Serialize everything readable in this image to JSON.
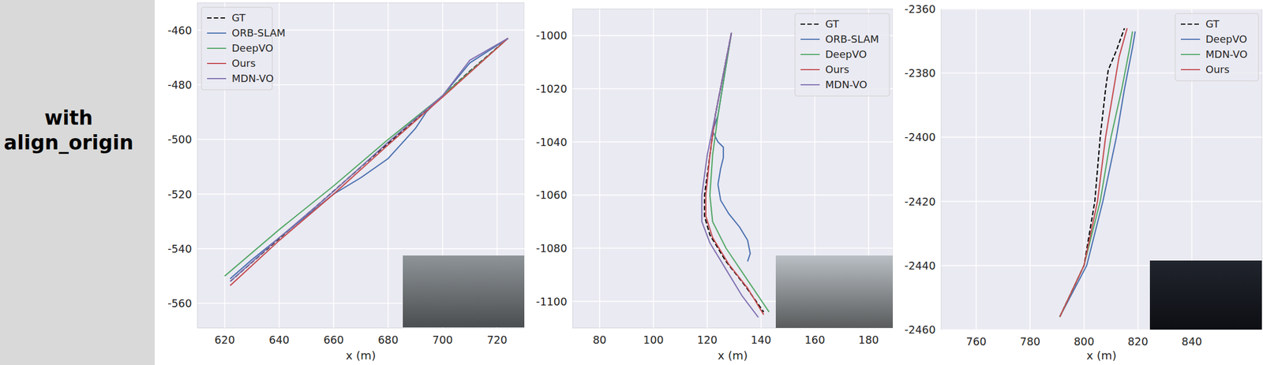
{
  "row_label": [
    "with",
    "align_origin"
  ],
  "chart_data": [
    {
      "type": "line",
      "x_label": "x (m)",
      "xlim": [
        610,
        730
      ],
      "ylim": [
        -569,
        -450
      ],
      "xticks": [
        620,
        640,
        660,
        680,
        700,
        720
      ],
      "yticks": [
        -460,
        -480,
        -500,
        -520,
        -540,
        -560
      ],
      "grid": true,
      "legend": "upper left",
      "series": [
        {
          "name": "GT",
          "color": "#000000",
          "line_style": "dashed",
          "x": [
            724,
            710,
            700,
            690,
            680,
            670,
            660,
            650,
            640,
            630,
            622
          ],
          "values": [
            -463,
            -475,
            -484,
            -492.7,
            -501.4,
            -510.1,
            -518.9,
            -527.6,
            -536.3,
            -545,
            -552
          ]
        },
        {
          "name": "ORB-SLAM",
          "color": "#4c72b0",
          "line_style": "solid",
          "x": [
            724,
            710,
            700,
            694,
            690,
            680,
            670,
            660,
            650,
            640,
            630,
            622
          ],
          "values": [
            -463,
            -472,
            -484,
            -490,
            -496,
            -507,
            -514,
            -520,
            -528,
            -536,
            -544,
            -551
          ]
        },
        {
          "name": "DeepVO",
          "color": "#55a868",
          "line_style": "solid",
          "x": [
            724,
            700,
            680,
            660,
            640,
            620
          ],
          "values": [
            -463,
            -484,
            -500,
            -517,
            -533,
            -550
          ]
        },
        {
          "name": "Ours",
          "color": "#c44e52",
          "line_style": "solid",
          "x": [
            724,
            700,
            680,
            660,
            640,
            622
          ],
          "values": [
            -463,
            -484.5,
            -502,
            -520,
            -537,
            -553.5
          ]
        },
        {
          "name": "MDN-VO",
          "color": "#8172b2",
          "line_style": "solid",
          "x": [
            724,
            710,
            700,
            680,
            660,
            640,
            622
          ],
          "values": [
            -463,
            -471,
            -484,
            -501,
            -519,
            -536,
            -552
          ]
        }
      ]
    },
    {
      "type": "line",
      "x_label": "x (m)",
      "xlim": [
        70,
        189
      ],
      "ylim": [
        -1110,
        -990
      ],
      "xticks": [
        80,
        100,
        120,
        140,
        160,
        180
      ],
      "yticks": [
        -1000,
        -1020,
        -1040,
        -1060,
        -1080,
        -1100
      ],
      "grid": true,
      "legend": "upper right",
      "series": [
        {
          "name": "GT",
          "color": "#000000",
          "line_style": "dashed",
          "x": [
            129,
            123,
            121,
            119,
            119,
            121,
            127,
            134,
            141
          ],
          "values": [
            -999,
            -1030,
            -1045,
            -1060,
            -1068,
            -1075,
            -1085,
            -1094,
            -1104
          ]
        },
        {
          "name": "ORB-SLAM",
          "color": "#4c72b0",
          "line_style": "solid",
          "x": [
            129,
            124,
            122,
            124,
            126,
            126,
            125,
            124,
            125,
            128,
            132,
            135,
            136,
            135
          ],
          "values": [
            -999,
            -1030,
            -1036,
            -1040,
            -1042,
            -1046,
            -1050,
            -1056,
            -1062,
            -1067,
            -1072,
            -1077,
            -1082,
            -1085
          ]
        },
        {
          "name": "DeepVO",
          "color": "#55a868",
          "line_style": "solid",
          "x": [
            129,
            124,
            122,
            121,
            122,
            127,
            135,
            143
          ],
          "values": [
            -999,
            -1030,
            -1045,
            -1060,
            -1070,
            -1080,
            -1092,
            -1104
          ]
        },
        {
          "name": "Ours",
          "color": "#c44e52",
          "line_style": "solid",
          "x": [
            129,
            123,
            121,
            119.5,
            119.5,
            122,
            128,
            135,
            141
          ],
          "values": [
            -999,
            -1030,
            -1045,
            -1060,
            -1068,
            -1076,
            -1086,
            -1095,
            -1105
          ]
        },
        {
          "name": "MDN-VO",
          "color": "#8172b2",
          "line_style": "solid",
          "x": [
            129,
            123,
            120,
            118,
            118,
            121,
            127,
            133,
            139
          ],
          "values": [
            -999,
            -1030,
            -1045,
            -1060,
            -1070,
            -1078,
            -1088,
            -1098,
            -1106
          ]
        }
      ]
    },
    {
      "type": "line",
      "x_label": "x (m)",
      "xlim": [
        747,
        866
      ],
      "ylim": [
        -2460,
        -2360
      ],
      "xticks": [
        760,
        780,
        800,
        820,
        840
      ],
      "yticks": [
        -2360,
        -2380,
        -2400,
        -2420,
        -2440,
        -2460
      ],
      "grid": true,
      "legend": "upper right",
      "series": [
        {
          "name": "GT",
          "color": "#000000",
          "line_style": "dashed",
          "x": [
            791,
            800,
            804,
            806,
            808,
            809,
            812,
            815
          ],
          "values": [
            -2456,
            -2440,
            -2420,
            -2400,
            -2385,
            -2379,
            -2373,
            -2366
          ]
        },
        {
          "name": "DeepVO",
          "color": "#4c72b0",
          "line_style": "solid",
          "x": [
            791,
            801,
            807,
            812,
            815,
            818,
            819
          ],
          "values": [
            -2456,
            -2440,
            -2420,
            -2400,
            -2385,
            -2372,
            -2367
          ]
        },
        {
          "name": "MDN-VO",
          "color": "#55a868",
          "line_style": "solid",
          "x": [
            791,
            800,
            806,
            810,
            814,
            817,
            818
          ],
          "values": [
            -2456,
            -2440,
            -2420,
            -2400,
            -2385,
            -2372,
            -2367
          ]
        },
        {
          "name": "Ours",
          "color": "#c44e52",
          "line_style": "solid",
          "x": [
            791,
            800,
            805,
            808,
            811,
            813,
            816
          ],
          "values": [
            -2456,
            -2440,
            -2420,
            -2400,
            -2385,
            -2375,
            -2366
          ]
        }
      ]
    }
  ]
}
